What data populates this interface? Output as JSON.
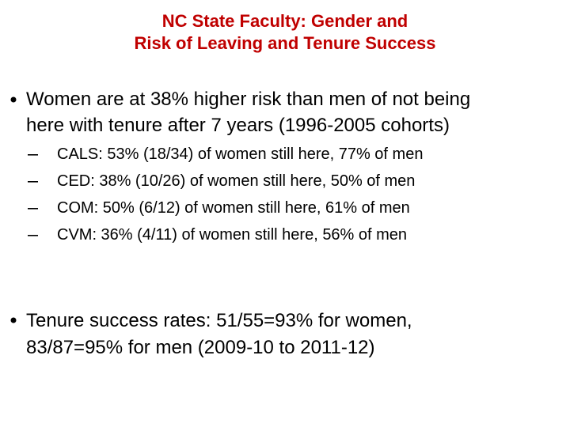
{
  "header": {
    "title_lines": [
      "NC State Faculty: Gender and",
      "Risk of Leaving and Tenure Success"
    ]
  },
  "bullets": [
    {
      "lines": [
        "Women are at 38% higher risk than men of not being",
        "here with tenure after 7 years (1996-2005 cohorts)"
      ],
      "sub_bullets": [
        "CALS: 53% (18/34) of women still here, 77% of men",
        "CED: 38% (10/26) of women still here, 50% of men",
        "COM: 50% (6/12) of women still here, 61% of men",
        "CVM: 36% (4/11) of women still here, 56% of men"
      ]
    },
    {
      "lines": [
        "Tenure success rates: 51/55=93% for women,",
        "83/87=95% for men (2009-10 to 2011-12)"
      ]
    }
  ]
}
